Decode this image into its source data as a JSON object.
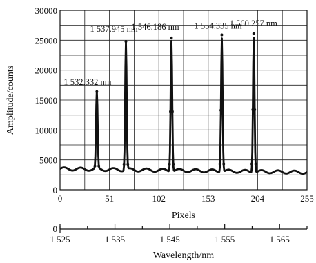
{
  "chart_data": [
    {
      "type": "line",
      "xlabel": "Pixels",
      "ylabel": "Amplitude/counts",
      "xlim": [
        0,
        255
      ],
      "ylim": [
        0,
        30000
      ],
      "x_ticks": [
        0,
        51,
        102,
        153,
        204,
        255
      ],
      "x_tick_labels": [
        "0",
        "51",
        "102",
        "153",
        "204",
        "255"
      ],
      "y_ticks": [
        0,
        5000,
        10000,
        15000,
        20000,
        25000,
        30000
      ],
      "y_tick_labels": [
        "0",
        "5000",
        "10000",
        "15000",
        "20000",
        "25000",
        "30000"
      ],
      "grid": true,
      "baseline": 3500,
      "series": [
        {
          "peaks": [
            {
              "pixel": 38,
              "amplitude": 16400
            },
            {
              "pixel": 68,
              "amplitude": 24800
            },
            {
              "pixel": 115,
              "amplitude": 25400
            },
            {
              "pixel": 167,
              "amplitude": 25900
            },
            {
              "pixel": 200,
              "amplitude": 26100
            }
          ]
        }
      ],
      "annotations": [
        {
          "text": "1 532.332 nm",
          "pixel": 38,
          "amplitude": 16400
        },
        {
          "text": "1 537.945 nm",
          "pixel": 68,
          "amplitude": 24800
        },
        {
          "text": "1 546.186 nm",
          "pixel": 115,
          "amplitude": 25400
        },
        {
          "text": "1 554.335 nm",
          "pixel": 167,
          "amplitude": 25900
        },
        {
          "text": "1 560.257 nm",
          "pixel": 200,
          "amplitude": 26100
        }
      ]
    },
    {
      "type": "axis",
      "xlabel": "Wavelength/nm",
      "xlim": [
        1525,
        1570
      ],
      "x_ticks": [
        1525,
        1535,
        1545,
        1555,
        1565
      ],
      "x_tick_labels": [
        "1 525",
        "1 535",
        "1 545",
        "1 555",
        "1 565"
      ],
      "y_tick_labels": [
        "0"
      ]
    }
  ]
}
